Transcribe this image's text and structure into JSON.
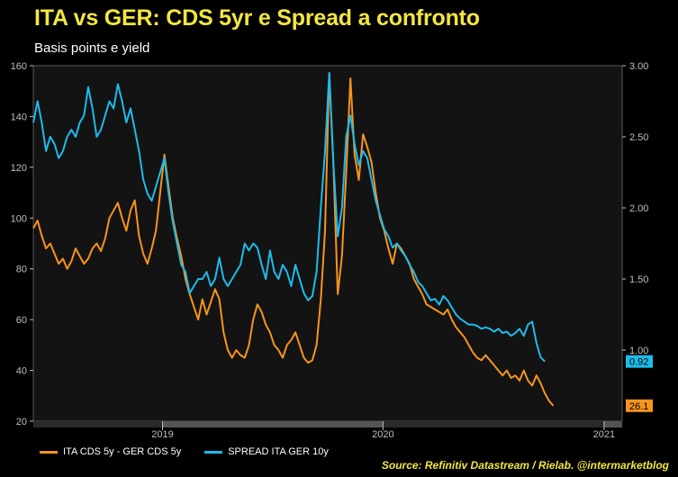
{
  "header": {
    "title": "ITA vs GER: CDS 5yr e Spread a confronto",
    "subtitle": "Basis points e yield"
  },
  "source": "Source: Refinitiv Datastream / Rielab. @intermarketblog",
  "colors": {
    "cds": "#f7941d",
    "spread": "#1ebbea",
    "axis": "#bfbfbf",
    "title": "#f2e640"
  },
  "chart_data": {
    "type": "line",
    "x_labels": [
      "2019",
      "2020",
      "2021"
    ],
    "left_axis": {
      "ylim": [
        20,
        160
      ],
      "ticks": [
        "20",
        "40",
        "60",
        "80",
        "100",
        "120",
        "140",
        "160"
      ]
    },
    "right_axis": {
      "ylim": [
        0.5,
        3.0
      ],
      "ticks": [
        "1.00",
        "1.50",
        "2.00",
        "2.50",
        "3.00"
      ]
    },
    "last_values": {
      "cds": "26.1",
      "spread": "0.92"
    },
    "series": [
      {
        "name": "ITA CDS 5y - GER CDS 5y",
        "axis": "left",
        "points": [
          [
            "2018-06-01",
            96
          ],
          [
            "2018-06-08",
            99
          ],
          [
            "2018-06-15",
            93
          ],
          [
            "2018-06-22",
            88
          ],
          [
            "2018-06-29",
            90
          ],
          [
            "2018-07-06",
            86
          ],
          [
            "2018-07-13",
            82
          ],
          [
            "2018-07-20",
            84
          ],
          [
            "2018-07-27",
            80
          ],
          [
            "2018-08-03",
            83
          ],
          [
            "2018-08-10",
            88
          ],
          [
            "2018-08-17",
            85
          ],
          [
            "2018-08-24",
            82
          ],
          [
            "2018-08-31",
            84
          ],
          [
            "2018-09-07",
            88
          ],
          [
            "2018-09-14",
            90
          ],
          [
            "2018-09-21",
            87
          ],
          [
            "2018-09-28",
            92
          ],
          [
            "2018-10-05",
            100
          ],
          [
            "2018-10-12",
            103
          ],
          [
            "2018-10-19",
            106
          ],
          [
            "2018-10-26",
            100
          ],
          [
            "2018-11-02",
            95
          ],
          [
            "2018-11-09",
            103
          ],
          [
            "2018-11-16",
            107
          ],
          [
            "2018-11-23",
            93
          ],
          [
            "2018-11-30",
            86
          ],
          [
            "2018-12-07",
            82
          ],
          [
            "2018-12-14",
            88
          ],
          [
            "2018-12-21",
            95
          ],
          [
            "2018-12-28",
            110
          ],
          [
            "2019-01-04",
            125
          ],
          [
            "2019-01-11",
            112
          ],
          [
            "2019-01-18",
            100
          ],
          [
            "2019-01-25",
            92
          ],
          [
            "2019-02-01",
            85
          ],
          [
            "2019-02-08",
            76
          ],
          [
            "2019-02-15",
            70
          ],
          [
            "2019-02-22",
            65
          ],
          [
            "2019-03-01",
            60
          ],
          [
            "2019-03-08",
            68
          ],
          [
            "2019-03-15",
            62
          ],
          [
            "2019-03-22",
            67
          ],
          [
            "2019-03-29",
            72
          ],
          [
            "2019-04-05",
            68
          ],
          [
            "2019-04-12",
            55
          ],
          [
            "2019-04-19",
            48
          ],
          [
            "2019-04-26",
            45
          ],
          [
            "2019-05-03",
            48
          ],
          [
            "2019-05-10",
            46
          ],
          [
            "2019-05-17",
            45
          ],
          [
            "2019-05-24",
            50
          ],
          [
            "2019-05-31",
            60
          ],
          [
            "2019-06-07",
            66
          ],
          [
            "2019-06-14",
            63
          ],
          [
            "2019-06-21",
            58
          ],
          [
            "2019-06-28",
            55
          ],
          [
            "2019-07-05",
            50
          ],
          [
            "2019-07-12",
            48
          ],
          [
            "2019-07-19",
            45
          ],
          [
            "2019-07-26",
            50
          ],
          [
            "2019-08-02",
            52
          ],
          [
            "2019-08-09",
            55
          ],
          [
            "2019-08-16",
            50
          ],
          [
            "2019-08-23",
            45
          ],
          [
            "2019-08-30",
            43
          ],
          [
            "2019-09-06",
            44
          ],
          [
            "2019-09-13",
            50
          ],
          [
            "2019-09-20",
            68
          ],
          [
            "2019-09-27",
            95
          ],
          [
            "2019-10-04",
            157
          ],
          [
            "2019-10-11",
            120
          ],
          [
            "2019-10-18",
            70
          ],
          [
            "2019-10-25",
            85
          ],
          [
            "2019-11-01",
            118
          ],
          [
            "2019-11-08",
            155
          ],
          [
            "2019-11-15",
            125
          ],
          [
            "2019-11-22",
            115
          ],
          [
            "2019-11-29",
            133
          ],
          [
            "2019-12-06",
            128
          ],
          [
            "2019-12-13",
            122
          ],
          [
            "2019-12-20",
            110
          ],
          [
            "2019-12-27",
            100
          ],
          [
            "2020-01-03",
            95
          ],
          [
            "2020-01-10",
            88
          ],
          [
            "2020-01-17",
            82
          ],
          [
            "2020-01-24",
            90
          ],
          [
            "2020-01-31",
            88
          ],
          [
            "2020-02-07",
            85
          ],
          [
            "2020-02-14",
            82
          ],
          [
            "2020-02-21",
            76
          ],
          [
            "2020-02-28",
            73
          ],
          [
            "2020-03-06",
            70
          ],
          [
            "2020-03-13",
            66
          ],
          [
            "2020-03-20",
            65
          ],
          [
            "2020-03-27",
            64
          ],
          [
            "2020-04-03",
            63
          ],
          [
            "2020-04-10",
            62
          ],
          [
            "2020-04-17",
            64
          ],
          [
            "2020-04-24",
            60
          ],
          [
            "2020-05-01",
            57
          ],
          [
            "2020-05-08",
            55
          ],
          [
            "2020-05-15",
            53
          ],
          [
            "2020-05-22",
            50
          ],
          [
            "2020-05-29",
            47
          ],
          [
            "2020-06-05",
            45
          ],
          [
            "2020-06-12",
            44
          ],
          [
            "2020-06-19",
            46
          ],
          [
            "2020-06-26",
            44
          ],
          [
            "2020-07-03",
            42
          ],
          [
            "2020-07-10",
            40
          ],
          [
            "2020-07-17",
            38
          ],
          [
            "2020-07-24",
            40
          ],
          [
            "2020-07-31",
            37
          ],
          [
            "2020-08-07",
            38
          ],
          [
            "2020-08-14",
            36
          ],
          [
            "2020-08-21",
            40
          ],
          [
            "2020-08-28",
            36
          ],
          [
            "2020-09-04",
            34
          ],
          [
            "2020-09-11",
            38
          ],
          [
            "2020-09-18",
            35
          ],
          [
            "2020-09-25",
            31
          ],
          [
            "2020-10-02",
            28
          ],
          [
            "2020-10-09",
            26.1
          ]
        ]
      },
      {
        "name": "SPREAD ITA GER 10y",
        "axis": "right",
        "points": [
          [
            "2018-06-01",
            2.6
          ],
          [
            "2018-06-08",
            2.75
          ],
          [
            "2018-06-15",
            2.6
          ],
          [
            "2018-06-22",
            2.4
          ],
          [
            "2018-06-29",
            2.5
          ],
          [
            "2018-07-06",
            2.45
          ],
          [
            "2018-07-13",
            2.35
          ],
          [
            "2018-07-20",
            2.4
          ],
          [
            "2018-07-27",
            2.5
          ],
          [
            "2018-08-03",
            2.55
          ],
          [
            "2018-08-10",
            2.5
          ],
          [
            "2018-08-17",
            2.6
          ],
          [
            "2018-08-24",
            2.65
          ],
          [
            "2018-08-31",
            2.85
          ],
          [
            "2018-09-07",
            2.7
          ],
          [
            "2018-09-14",
            2.5
          ],
          [
            "2018-09-21",
            2.55
          ],
          [
            "2018-09-28",
            2.65
          ],
          [
            "2018-10-05",
            2.75
          ],
          [
            "2018-10-12",
            2.7
          ],
          [
            "2018-10-19",
            2.87
          ],
          [
            "2018-10-26",
            2.75
          ],
          [
            "2018-11-02",
            2.6
          ],
          [
            "2018-11-09",
            2.7
          ],
          [
            "2018-11-16",
            2.55
          ],
          [
            "2018-11-23",
            2.4
          ],
          [
            "2018-11-30",
            2.2
          ],
          [
            "2018-12-07",
            2.1
          ],
          [
            "2018-12-14",
            2.05
          ],
          [
            "2018-12-21",
            2.15
          ],
          [
            "2018-12-28",
            2.25
          ],
          [
            "2019-01-04",
            2.35
          ],
          [
            "2019-01-11",
            2.1
          ],
          [
            "2019-01-18",
            1.9
          ],
          [
            "2019-01-25",
            1.75
          ],
          [
            "2019-02-01",
            1.6
          ],
          [
            "2019-02-08",
            1.55
          ],
          [
            "2019-02-15",
            1.4
          ],
          [
            "2019-02-22",
            1.45
          ],
          [
            "2019-03-01",
            1.5
          ],
          [
            "2019-03-08",
            1.5
          ],
          [
            "2019-03-15",
            1.55
          ],
          [
            "2019-03-22",
            1.45
          ],
          [
            "2019-03-29",
            1.5
          ],
          [
            "2019-04-05",
            1.65
          ],
          [
            "2019-04-12",
            1.5
          ],
          [
            "2019-04-19",
            1.45
          ],
          [
            "2019-04-26",
            1.5
          ],
          [
            "2019-05-03",
            1.55
          ],
          [
            "2019-05-10",
            1.6
          ],
          [
            "2019-05-17",
            1.75
          ],
          [
            "2019-05-24",
            1.7
          ],
          [
            "2019-05-31",
            1.75
          ],
          [
            "2019-06-07",
            1.72
          ],
          [
            "2019-06-14",
            1.6
          ],
          [
            "2019-06-21",
            1.5
          ],
          [
            "2019-06-28",
            1.7
          ],
          [
            "2019-07-05",
            1.55
          ],
          [
            "2019-07-12",
            1.5
          ],
          [
            "2019-07-19",
            1.6
          ],
          [
            "2019-07-26",
            1.55
          ],
          [
            "2019-08-02",
            1.45
          ],
          [
            "2019-08-09",
            1.6
          ],
          [
            "2019-08-16",
            1.5
          ],
          [
            "2019-08-23",
            1.4
          ],
          [
            "2019-08-30",
            1.35
          ],
          [
            "2019-09-06",
            1.38
          ],
          [
            "2019-09-13",
            1.55
          ],
          [
            "2019-09-20",
            2.0
          ],
          [
            "2019-09-27",
            2.4
          ],
          [
            "2019-10-04",
            2.95
          ],
          [
            "2019-10-11",
            2.3
          ],
          [
            "2019-10-18",
            1.8
          ],
          [
            "2019-10-25",
            2.0
          ],
          [
            "2019-11-01",
            2.5
          ],
          [
            "2019-11-08",
            2.65
          ],
          [
            "2019-11-15",
            2.45
          ],
          [
            "2019-11-22",
            2.3
          ],
          [
            "2019-11-29",
            2.4
          ],
          [
            "2019-12-06",
            2.35
          ],
          [
            "2019-12-13",
            2.2
          ],
          [
            "2019-12-20",
            2.05
          ],
          [
            "2019-12-27",
            1.95
          ],
          [
            "2020-01-03",
            1.85
          ],
          [
            "2020-01-10",
            1.8
          ],
          [
            "2020-01-17",
            1.72
          ],
          [
            "2020-01-24",
            1.75
          ],
          [
            "2020-01-31",
            1.7
          ],
          [
            "2020-02-07",
            1.66
          ],
          [
            "2020-02-14",
            1.6
          ],
          [
            "2020-02-21",
            1.55
          ],
          [
            "2020-02-28",
            1.48
          ],
          [
            "2020-03-06",
            1.45
          ],
          [
            "2020-03-13",
            1.4
          ],
          [
            "2020-03-20",
            1.35
          ],
          [
            "2020-03-27",
            1.36
          ],
          [
            "2020-04-03",
            1.32
          ],
          [
            "2020-04-10",
            1.38
          ],
          [
            "2020-04-17",
            1.35
          ],
          [
            "2020-04-24",
            1.3
          ],
          [
            "2020-05-01",
            1.25
          ],
          [
            "2020-05-08",
            1.22
          ],
          [
            "2020-05-15",
            1.2
          ],
          [
            "2020-05-22",
            1.18
          ],
          [
            "2020-05-29",
            1.18
          ],
          [
            "2020-06-05",
            1.17
          ],
          [
            "2020-06-12",
            1.15
          ],
          [
            "2020-06-19",
            1.16
          ],
          [
            "2020-06-26",
            1.15
          ],
          [
            "2020-07-03",
            1.13
          ],
          [
            "2020-07-10",
            1.15
          ],
          [
            "2020-07-17",
            1.12
          ],
          [
            "2020-07-24",
            1.13
          ],
          [
            "2020-07-31",
            1.1
          ],
          [
            "2020-08-07",
            1.12
          ],
          [
            "2020-08-14",
            1.15
          ],
          [
            "2020-08-21",
            1.1
          ],
          [
            "2020-08-28",
            1.18
          ],
          [
            "2020-09-04",
            1.2
          ],
          [
            "2020-09-11",
            1.05
          ],
          [
            "2020-09-18",
            0.95
          ],
          [
            "2020-09-25",
            0.92
          ]
        ]
      }
    ]
  }
}
